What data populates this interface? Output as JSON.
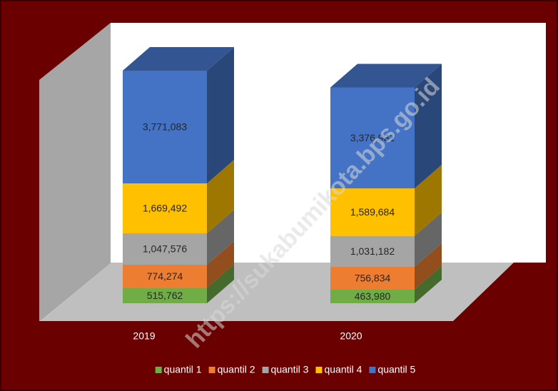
{
  "chart_data": {
    "type": "bar",
    "stacked": true,
    "three_d": true,
    "categories": [
      "2019",
      "2020"
    ],
    "series": [
      {
        "name": "quantil 1",
        "color": "#70ad47",
        "values": [
          515762,
          463980
        ],
        "value_labels": [
          "515,762",
          "463,980"
        ]
      },
      {
        "name": "quantil 2",
        "color": "#ed7d31",
        "values": [
          774274,
          756834
        ],
        "value_labels": [
          "774,274",
          "756,834"
        ]
      },
      {
        "name": "quantil 3",
        "color": "#a5a5a5",
        "values": [
          1047576,
          1031182
        ],
        "value_labels": [
          "1,047,576",
          "1,031,182"
        ]
      },
      {
        "name": "quantil 4",
        "color": "#ffc000",
        "values": [
          1669492,
          1589684
        ],
        "value_labels": [
          "1,669,492",
          "1,589,684"
        ]
      },
      {
        "name": "quantil 5",
        "color": "#4472c4",
        "values": [
          3771083,
          3376931
        ],
        "value_labels": [
          "3,771,083",
          "3,376,931"
        ]
      }
    ],
    "legend": "bottom",
    "watermark": "https://sukabumikota.bps.go.id"
  }
}
